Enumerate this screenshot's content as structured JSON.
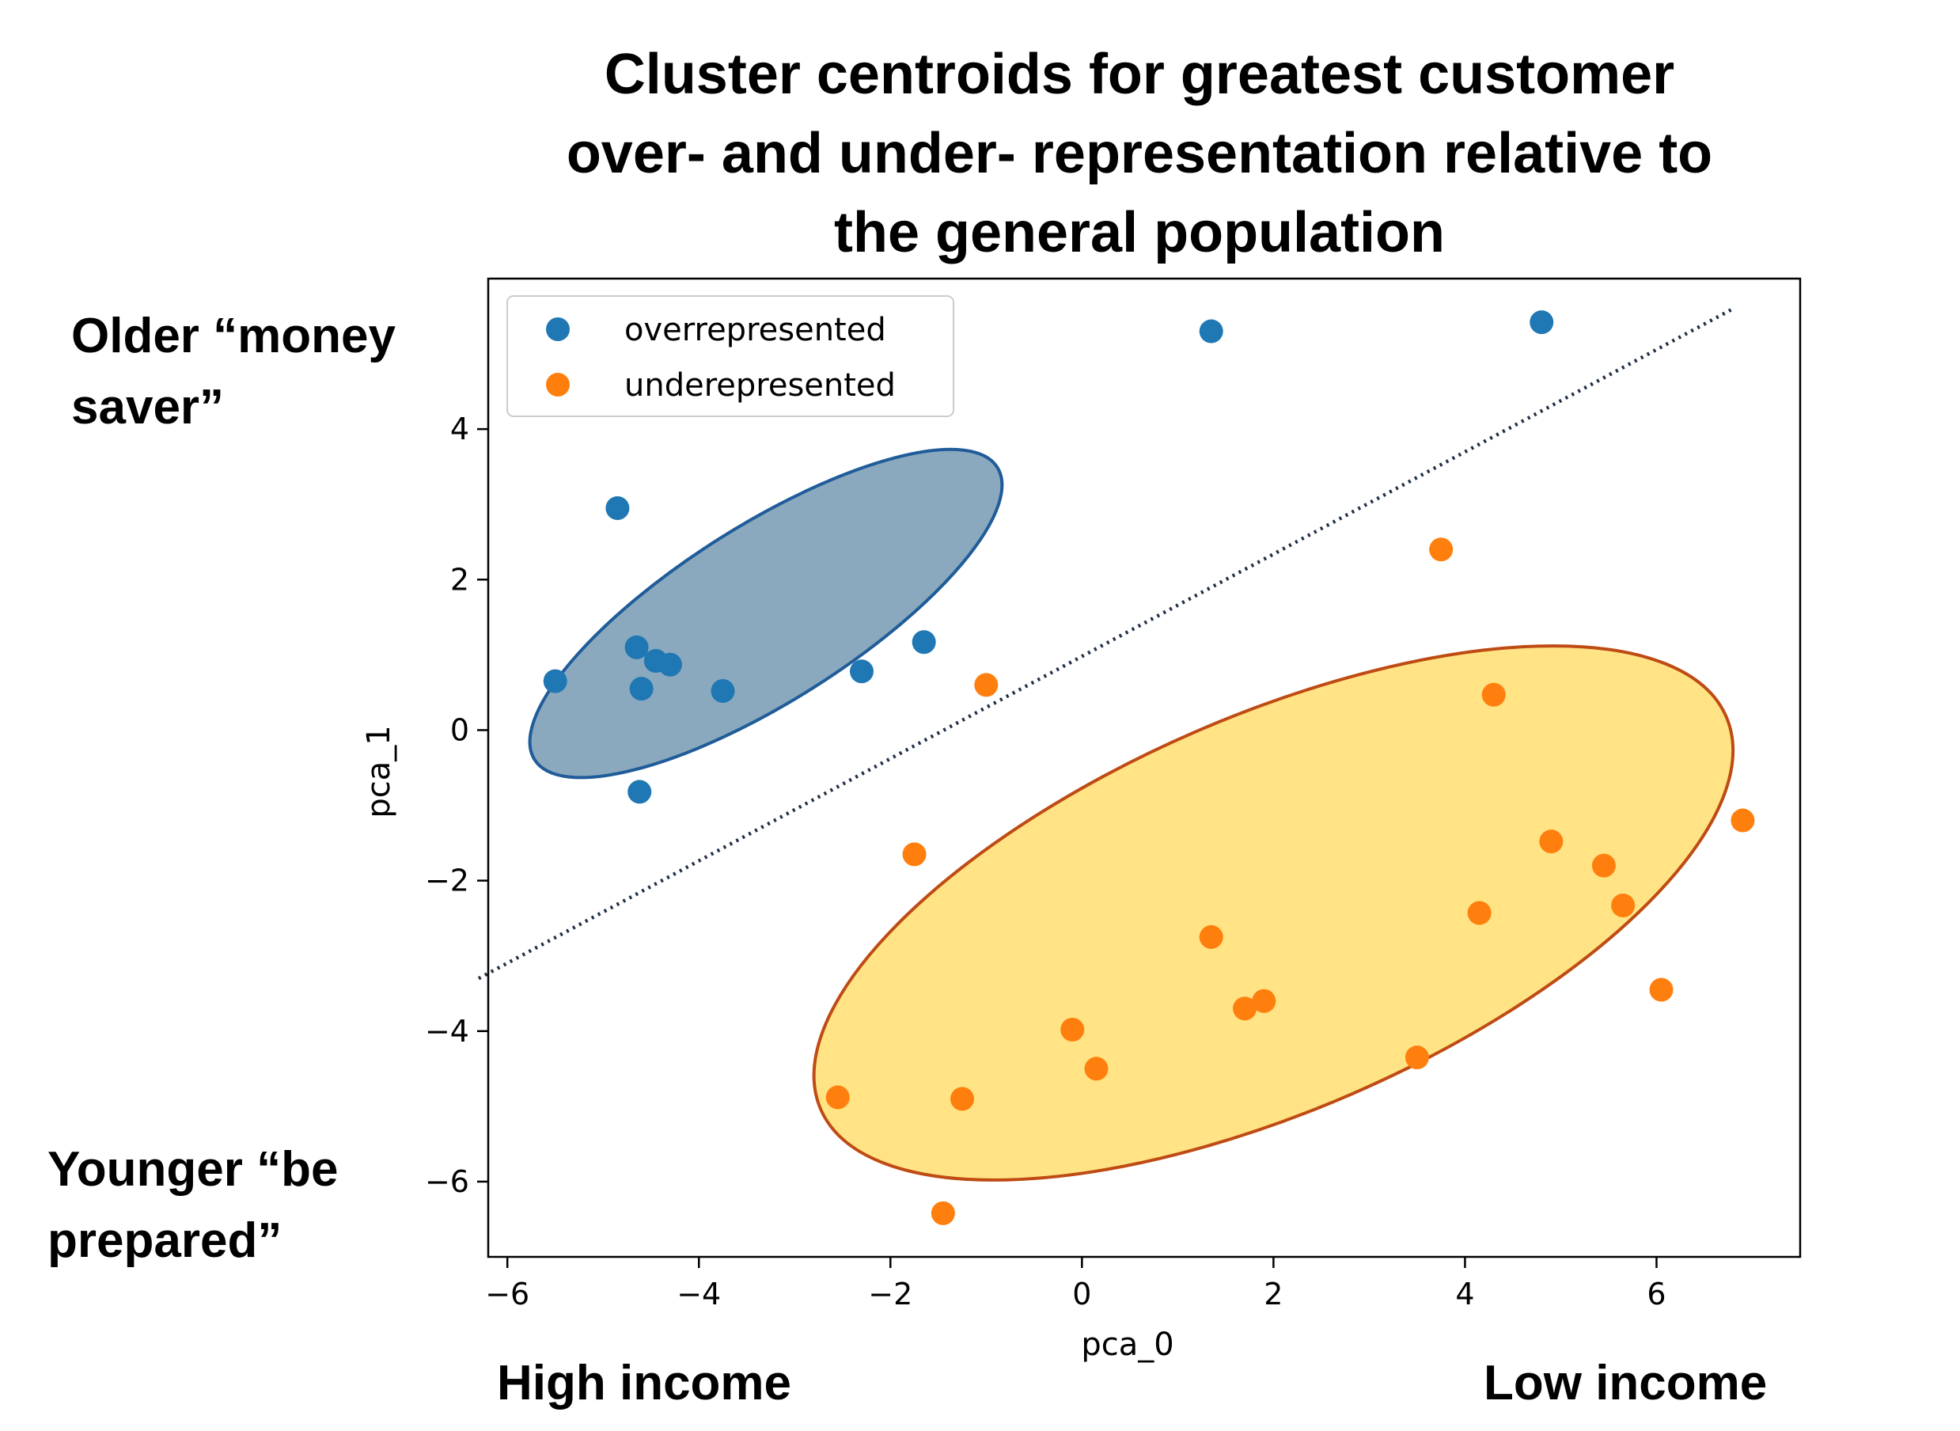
{
  "chart_data": {
    "type": "scatter",
    "title": [
      "Cluster centroids for greatest customer",
      "over- and under- representation relative to",
      "the general population"
    ],
    "xlabel": "pca_0",
    "ylabel": "pca_1",
    "xlim": [
      -6.2,
      7.5
    ],
    "ylim": [
      -7.0,
      6.0
    ],
    "xticks": [
      -6,
      -4,
      -2,
      0,
      2,
      4,
      6
    ],
    "yticks": [
      -6,
      -4,
      -2,
      0,
      2,
      4
    ],
    "xtick_labels": [
      "−6",
      "−4",
      "−2",
      "0",
      "2",
      "4",
      "6"
    ],
    "ytick_labels": [
      "−6",
      "−4",
      "−2",
      "0",
      "2",
      "4"
    ],
    "grid": false,
    "legend_position": "top-left",
    "series": [
      {
        "name": "overrepresented",
        "color": "#1f77b4",
        "points": [
          [
            -5.5,
            0.65
          ],
          [
            -4.85,
            2.95
          ],
          [
            -4.65,
            1.1
          ],
          [
            -4.45,
            0.92
          ],
          [
            -4.3,
            0.87
          ],
          [
            -4.6,
            0.55
          ],
          [
            -3.75,
            0.52
          ],
          [
            -2.3,
            0.78
          ],
          [
            -1.65,
            1.17
          ],
          [
            -4.62,
            -0.82
          ],
          [
            1.35,
            5.3
          ],
          [
            4.8,
            5.42
          ]
        ]
      },
      {
        "name": "underepresented",
        "color": "#ff7f0e",
        "points": [
          [
            -1.0,
            0.6
          ],
          [
            3.75,
            2.4
          ],
          [
            4.3,
            0.47
          ],
          [
            -1.75,
            -1.65
          ],
          [
            4.9,
            -1.48
          ],
          [
            5.45,
            -1.8
          ],
          [
            5.65,
            -2.33
          ],
          [
            6.9,
            -1.2
          ],
          [
            4.15,
            -2.43
          ],
          [
            1.35,
            -2.75
          ],
          [
            1.7,
            -3.7
          ],
          [
            1.9,
            -3.6
          ],
          [
            6.05,
            -3.45
          ],
          [
            -0.1,
            -3.98
          ],
          [
            0.15,
            -4.5
          ],
          [
            3.5,
            -4.35
          ],
          [
            -2.55,
            -4.88
          ],
          [
            -1.25,
            -4.9
          ],
          [
            -1.45,
            -6.42
          ]
        ]
      }
    ],
    "ellipses": [
      {
        "name": "overrepresented cluster region",
        "center": [
          -3.3,
          1.55
        ],
        "rx": 3.1,
        "ry": 1.05,
        "angle_deg": 38.8,
        "fill": "#1f5a82",
        "fill_opacity": 0.52,
        "stroke": "#1f5c99"
      },
      {
        "name": "underrepresented cluster region",
        "center": [
          2.0,
          -2.43
        ],
        "rx": 5.4,
        "ry": 2.45,
        "angle_deg": 28.9,
        "fill": "#ffd54a",
        "fill_opacity": 0.68,
        "stroke": "#bf4b14"
      }
    ],
    "divider_line": {
      "start": [
        -6.3,
        -3.3
      ],
      "end": [
        6.8,
        5.6
      ],
      "color": "#1f2f45",
      "style": "dotted"
    }
  },
  "annotations": {
    "top_left": [
      "Older “money",
      "saver”"
    ],
    "bottom_left": [
      "Younger “be",
      "prepared”"
    ],
    "bottom_left_x": "High income",
    "bottom_right_x": "Low income"
  }
}
